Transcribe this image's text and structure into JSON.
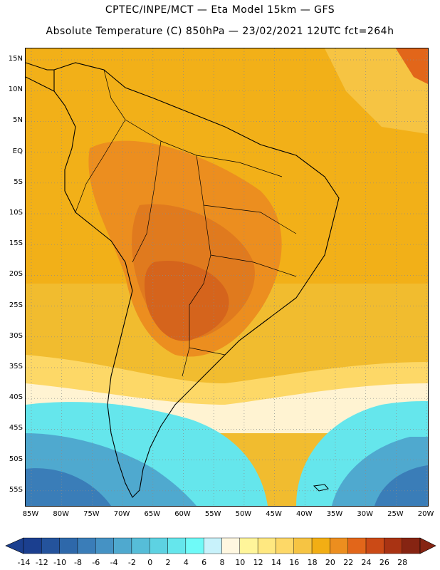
{
  "title": {
    "line1": "CPTEC/INPE/MCT —  Eta Model 15km — GFS",
    "line2": "Absolute Temperature (C) 850hPa — 23/02/2021 12UTC fct=264h"
  },
  "lat_labels": [
    "15N",
    "10N",
    "5N",
    "EQ",
    "5S",
    "10S",
    "15S",
    "20S",
    "25S",
    "30S",
    "35S",
    "40S",
    "45S",
    "50S",
    "55S"
  ],
  "lon_labels": [
    "85W",
    "80W",
    "75W",
    "70W",
    "65W",
    "60W",
    "55W",
    "50W",
    "45W",
    "40W",
    "35W",
    "30W",
    "25W",
    "20W"
  ],
  "colorbar": {
    "labels": [
      "-14",
      "-12",
      "-10",
      "-8",
      "-6",
      "-4",
      "-2",
      "0",
      "2",
      "4",
      "6",
      "8",
      "10",
      "12",
      "14",
      "16",
      "18",
      "20",
      "22",
      "24",
      "26",
      "28"
    ],
    "colors": [
      "#1b3f8f",
      "#24539c",
      "#2e68aa",
      "#3a7db8",
      "#4592c4",
      "#4fa9cf",
      "#56bdd8",
      "#5dd2e2",
      "#65e6ec",
      "#6ffaf8",
      "#c8f2fb",
      "#fff7e0",
      "#fff59a",
      "#ffe880",
      "#fdd867",
      "#f6c443",
      "#f2ae14",
      "#ec8e1f",
      "#e2661a",
      "#cb4a16",
      "#a93313",
      "#862412"
    ]
  },
  "map": {
    "colors": {
      "ocean_n": "#f1bc2f",
      "ocean_mid": "#f6c443",
      "warm": "#ec981c",
      "warmer": "#e07a1e",
      "hot": "#d5641c",
      "cool_belt": "#fdd867",
      "pale": "#fff3d2",
      "cyan": "#65e6ec",
      "blue1": "#4fa9cf",
      "blue2": "#3a7db8",
      "coast": "#000000"
    }
  }
}
